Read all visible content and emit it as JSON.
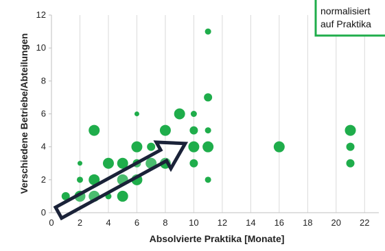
{
  "chart_data": {
    "type": "scatter",
    "xlabel": "Absolvierte Praktika [Monate]",
    "ylabel": "Verschiedene Betriebe/Abteilungen",
    "xlim": [
      0,
      23
    ],
    "ylim": [
      0,
      12
    ],
    "x_ticks": [
      0,
      2,
      4,
      6,
      8,
      10,
      12,
      14,
      16,
      18,
      20,
      22
    ],
    "y_ticks": [
      0,
      2,
      4,
      6,
      8,
      10,
      12
    ],
    "grid": "vertical",
    "marker_color": "#1fad4b",
    "points": [
      {
        "x": 1,
        "y": 1,
        "size": "medium"
      },
      {
        "x": 2,
        "y": 1,
        "size": "large"
      },
      {
        "x": 2,
        "y": 2,
        "size": "small"
      },
      {
        "x": 2,
        "y": 3,
        "size": "tiny"
      },
      {
        "x": 3,
        "y": 1,
        "size": "large"
      },
      {
        "x": 3,
        "y": 2,
        "size": "large"
      },
      {
        "x": 3,
        "y": 5,
        "size": "large"
      },
      {
        "x": 4,
        "y": 1,
        "size": "small"
      },
      {
        "x": 4,
        "y": 3,
        "size": "large"
      },
      {
        "x": 5,
        "y": 1,
        "size": "large"
      },
      {
        "x": 5,
        "y": 2,
        "size": "large"
      },
      {
        "x": 5,
        "y": 3,
        "size": "large"
      },
      {
        "x": 6,
        "y": 2,
        "size": "large"
      },
      {
        "x": 6,
        "y": 3,
        "size": "medium"
      },
      {
        "x": 6,
        "y": 4,
        "size": "large"
      },
      {
        "x": 6,
        "y": 6,
        "size": "tiny"
      },
      {
        "x": 7,
        "y": 3,
        "size": "large"
      },
      {
        "x": 7,
        "y": 4,
        "size": "medium"
      },
      {
        "x": 8,
        "y": 3,
        "size": "large"
      },
      {
        "x": 8,
        "y": 5,
        "size": "large"
      },
      {
        "x": 9,
        "y": 6,
        "size": "large"
      },
      {
        "x": 10,
        "y": 3,
        "size": "medium"
      },
      {
        "x": 10,
        "y": 4,
        "size": "large"
      },
      {
        "x": 10,
        "y": 5,
        "size": "medium"
      },
      {
        "x": 10,
        "y": 6,
        "size": "small"
      },
      {
        "x": 11,
        "y": 2,
        "size": "small"
      },
      {
        "x": 11,
        "y": 4,
        "size": "large"
      },
      {
        "x": 11,
        "y": 5,
        "size": "small"
      },
      {
        "x": 11,
        "y": 7,
        "size": "medium"
      },
      {
        "x": 11,
        "y": 11,
        "size": "small"
      },
      {
        "x": 16,
        "y": 4,
        "size": "large"
      },
      {
        "x": 21,
        "y": 3,
        "size": "medium"
      },
      {
        "x": 21,
        "y": 4,
        "size": "medium"
      },
      {
        "x": 21,
        "y": 5,
        "size": "large"
      }
    ],
    "annotation": {
      "lines": [
        "normalisiert",
        "auf Praktika"
      ],
      "border_color": "#1fad4b"
    },
    "trend_arrow": {
      "from": {
        "x": 0.5,
        "y": 0
      },
      "to": {
        "x": 9.4,
        "y": 4.2
      },
      "stroke": "#1a2238"
    }
  }
}
